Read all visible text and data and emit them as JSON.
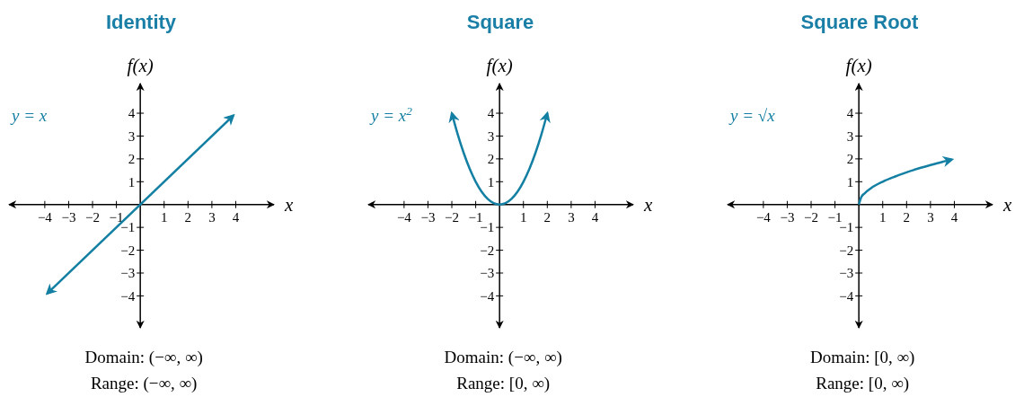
{
  "chart_data": [
    {
      "type": "line",
      "title": "Identity",
      "xlabel": "x",
      "ylabel": "f(x)",
      "xlim": [
        -5.5,
        5.6
      ],
      "ylim": [
        -5.4,
        5.3
      ],
      "xticks": [
        {
          "value": -4,
          "label": "−4"
        },
        {
          "value": -3,
          "label": "−3"
        },
        {
          "value": -2,
          "label": "−2"
        },
        {
          "value": -1,
          "label": "−1"
        },
        1,
        2,
        3,
        4
      ],
      "yticks": [
        {
          "value": -4,
          "label": "−4"
        },
        {
          "value": -3,
          "label": "−3"
        },
        {
          "value": -2,
          "label": "−2"
        },
        {
          "value": -1,
          "label": "−1"
        },
        1,
        2,
        3,
        4
      ],
      "series": [
        {
          "name": "y = x",
          "color": "#137fa2",
          "x": [
            -3.9,
            3.9
          ],
          "values": [
            -3.9,
            3.9
          ]
        }
      ],
      "annotations": [
        "Domain: (−∞, ∞)",
        "Range: (−∞, ∞)"
      ]
    },
    {
      "type": "line",
      "title": "Square",
      "xlabel": "x",
      "ylabel": "f(x)",
      "xlim": [
        -5.5,
        5.6
      ],
      "ylim": [
        -5.4,
        5.3
      ],
      "xticks": [
        {
          "value": -4,
          "label": "−4"
        },
        {
          "value": -3,
          "label": "−3"
        },
        {
          "value": -2,
          "label": "−2"
        },
        {
          "value": -1,
          "label": "−1"
        },
        1,
        2,
        3,
        4
      ],
      "yticks": [
        {
          "value": -4,
          "label": "−4"
        },
        {
          "value": -3,
          "label": "−3"
        },
        {
          "value": -2,
          "label": "−2"
        },
        {
          "value": -1,
          "label": "−1"
        },
        1,
        2,
        3,
        4
      ],
      "series": [
        {
          "name": "y = x$^{2}$",
          "color": "#137fa2",
          "x": [
            -2,
            -1.75,
            -1.5,
            -1.25,
            -1,
            -0.75,
            -0.5,
            -0.25,
            0,
            0.25,
            0.5,
            0.75,
            1,
            1.25,
            1.5,
            1.75,
            2
          ],
          "values": [
            4,
            3.06,
            2.25,
            1.56,
            1,
            0.56,
            0.25,
            0.06,
            0,
            0.06,
            0.25,
            0.56,
            1,
            1.56,
            2.25,
            3.06,
            4
          ]
        }
      ],
      "annotations": [
        "Domain: (−∞, ∞)",
        "Range: [0, ∞)"
      ]
    },
    {
      "type": "line",
      "title": "Square Root",
      "xlabel": "x",
      "ylabel": "f(x)",
      "xlim": [
        -5.5,
        5.6
      ],
      "ylim": [
        -5.4,
        5.3
      ],
      "xticks": [
        {
          "value": -4,
          "label": "−4"
        },
        {
          "value": -3,
          "label": "−3"
        },
        {
          "value": -2,
          "label": "−2"
        },
        {
          "value": -1,
          "label": "−1"
        },
        1,
        2,
        3,
        4
      ],
      "yticks": [
        {
          "value": -4,
          "label": "−4"
        },
        {
          "value": -3,
          "label": "−3"
        },
        {
          "value": -2,
          "label": "−2"
        },
        {
          "value": -1,
          "label": "−1"
        },
        1,
        2,
        3,
        4
      ],
      "series": [
        {
          "name": "y = √x",
          "color": "#137fa2",
          "x": [
            0,
            0.1,
            0.25,
            0.5,
            1,
            1.5,
            2,
            2.5,
            3,
            3.5,
            3.9
          ],
          "values": [
            0,
            0.32,
            0.5,
            0.71,
            1,
            1.22,
            1.41,
            1.58,
            1.73,
            1.87,
            1.97
          ]
        }
      ],
      "annotations": [
        "Domain: [0, ∞)",
        "Range: [0, ∞)"
      ]
    }
  ]
}
